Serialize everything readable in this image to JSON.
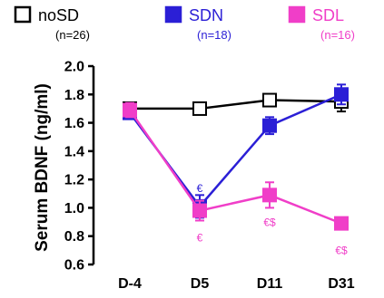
{
  "chart_data": {
    "type": "line",
    "title": "",
    "xlabel": "",
    "ylabel": "Serum BDNF (ng/ml)",
    "categories": [
      "D-4",
      "D5",
      "D11",
      "D31"
    ],
    "ylim": [
      0.6,
      2.0
    ],
    "yticks": [
      "0.6",
      "0.8",
      "1.0",
      "1.2",
      "1.4",
      "1.6",
      "1.8",
      "2.0"
    ],
    "legend_position": "top",
    "series": [
      {
        "name": "noSD",
        "n_label": "(n=26)",
        "color": "#000000",
        "fill": "#ffffff",
        "values": [
          1.7,
          1.7,
          1.76,
          1.75
        ],
        "errors": [
          0.03,
          0.04,
          0.03,
          0.07
        ],
        "annotations": [
          "",
          "",
          "",
          ""
        ]
      },
      {
        "name": "SDN",
        "n_label": "(n=18)",
        "color": "#2b1fd6",
        "fill": "#2b1fd6",
        "values": [
          1.67,
          1.01,
          1.58,
          1.8
        ],
        "errors": [
          0.04,
          0.08,
          0.06,
          0.07
        ],
        "annotations": [
          "",
          "€",
          "",
          ""
        ]
      },
      {
        "name": "SDL",
        "n_label": "(n=16)",
        "color": "#f03ec8",
        "fill": "#f03ec8",
        "values": [
          1.69,
          0.98,
          1.09,
          0.89
        ],
        "errors": [
          0.05,
          0.07,
          0.09,
          0.03
        ],
        "annotations": [
          "",
          "€",
          "€$",
          "€$"
        ]
      }
    ]
  }
}
